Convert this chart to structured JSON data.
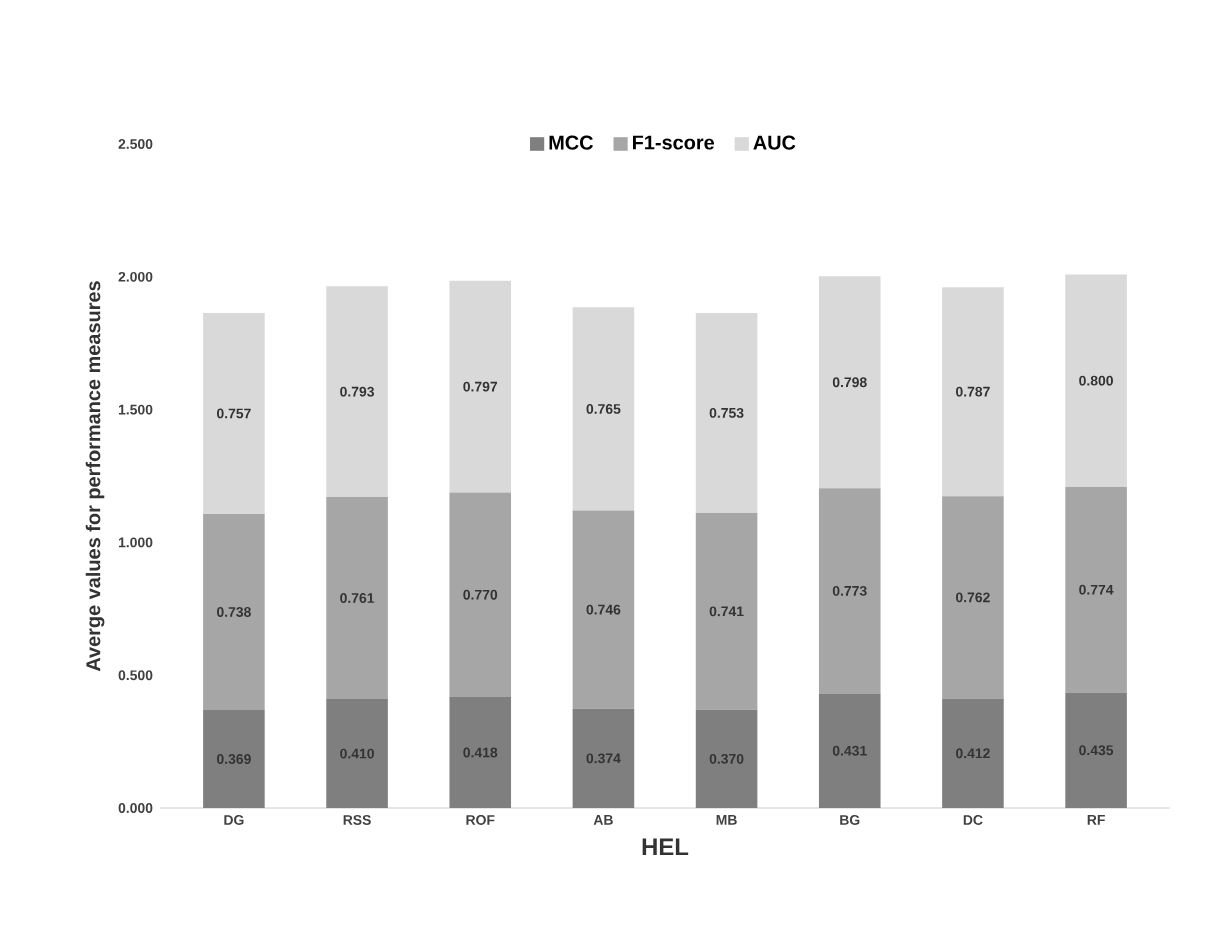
{
  "chart_data": {
    "type": "bar",
    "stacked": true,
    "xlabel": "HEL",
    "ylabel": "Averge values for performance measures",
    "categories": [
      "DG",
      "RSS",
      "ROF",
      "AB",
      "MB",
      "BG",
      "DC",
      "RF"
    ],
    "series": [
      {
        "name": "MCC",
        "color": "#7f7f7f",
        "values": [
          0.369,
          0.41,
          0.418,
          0.374,
          0.37,
          0.431,
          0.412,
          0.435
        ],
        "value_labels": [
          "0.369",
          "0.410",
          "0.418",
          "0.374",
          "0.370",
          "0.431",
          "0.412",
          "0.435"
        ]
      },
      {
        "name": "F1-score",
        "color": "#a6a6a6",
        "values": [
          0.738,
          0.761,
          0.77,
          0.746,
          0.741,
          0.773,
          0.762,
          0.774
        ],
        "value_labels": [
          "0.738",
          "0.761",
          "0.770",
          "0.746",
          "0.741",
          "0.773",
          "0.762",
          "0.774"
        ]
      },
      {
        "name": "AUC",
        "color": "#d9d9d9",
        "values": [
          0.757,
          0.793,
          0.797,
          0.765,
          0.753,
          0.798,
          0.787,
          0.8
        ],
        "value_labels": [
          "0.757",
          "0.793",
          "0.797",
          "0.765",
          "0.753",
          "0.798",
          "0.787",
          "0.800"
        ]
      }
    ],
    "ylim": [
      0,
      2.5
    ],
    "yticks": [
      {
        "value": 0,
        "label": "0.000"
      },
      {
        "value": 0.5,
        "label": "0.500"
      },
      {
        "value": 1,
        "label": "1.000"
      },
      {
        "value": 1.5,
        "label": "1.500"
      },
      {
        "value": 2,
        "label": "2.000"
      },
      {
        "value": 2.5,
        "label": "2.500"
      }
    ],
    "legend": "top"
  }
}
